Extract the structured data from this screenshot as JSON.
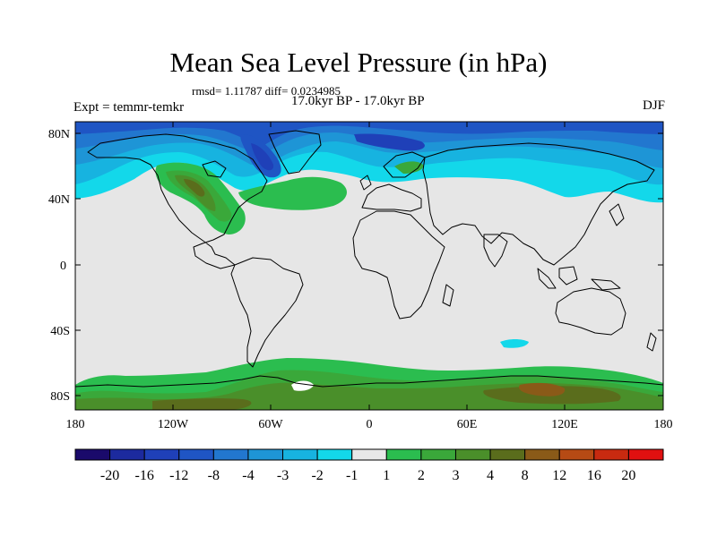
{
  "title": "Mean Sea Level Pressure (in hPa)",
  "stats": "rmsd= 1.11787 diff= 0.0234985",
  "experiment": "Expt = temmr-temkr",
  "period": "17.0kyr BP - 17.0kyr BP",
  "season": "DJF",
  "lat_ticks": [
    "80N",
    "40N",
    "0",
    "40S",
    "80S"
  ],
  "lon_ticks": [
    "180",
    "120W",
    "60W",
    "0",
    "60E",
    "120E",
    "180"
  ],
  "colorbar": {
    "labels": [
      "-20",
      "-16",
      "-12",
      "-8",
      "-4",
      "-3",
      "-2",
      "-1",
      "1",
      "2",
      "3",
      "4",
      "8",
      "12",
      "16",
      "20"
    ],
    "colors": [
      "#1a0a6b",
      "#1c2a9e",
      "#1f40b8",
      "#1f55c4",
      "#2277cf",
      "#1e95d6",
      "#17b3e0",
      "#13d8ea",
      "#e8e8e8",
      "#2bbd4f",
      "#3aa83a",
      "#4a8f2a",
      "#5a6d1c",
      "#8a5a18",
      "#b64a14",
      "#c82a10",
      "#e01010"
    ]
  },
  "colors": {
    "ocean_background": "#e6e6e6",
    "coastline": "#000000"
  }
}
